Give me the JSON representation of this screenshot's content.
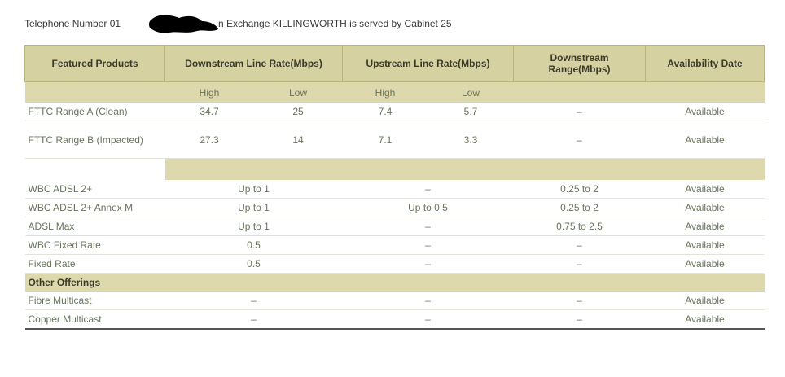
{
  "header": {
    "text_before": "Telephone Number 01",
    "text_after": "n Exchange KILLINGWORTH is served by Cabinet 25"
  },
  "table": {
    "columns": [
      "Featured Products",
      "Downstream Line Rate(Mbps)",
      "Upstream Line Rate(Mbps)",
      "Downstream Range(Mbps)",
      "Availability Date"
    ],
    "subcolumns": [
      "High",
      "Low",
      "High",
      "Low"
    ],
    "rows": [
      [
        "FTTC Range A (Clean)",
        "34.7",
        "25",
        "7.4",
        "5.7",
        "–",
        "Available"
      ],
      [
        "FTTC Range B (Impacted)",
        "27.3",
        "14",
        "7.1",
        "3.3",
        "–",
        "Available"
      ]
    ],
    "rows_b": [
      [
        "WBC ADSL 2+",
        "Up to 1",
        "–",
        "0.25 to 2",
        "Available"
      ],
      [
        "WBC ADSL 2+ Annex M",
        "Up to 1",
        "Up to 0.5",
        "0.25 to 2",
        "Available"
      ],
      [
        "ADSL Max",
        "Up to 1",
        "–",
        "0.75 to 2.5",
        "Available"
      ],
      [
        "WBC Fixed Rate",
        "0.5",
        "–",
        "–",
        "Available"
      ],
      [
        "Fixed Rate",
        "0.5",
        "–",
        "–",
        "Available"
      ]
    ],
    "section": "Other Offerings",
    "rows_c": [
      [
        "Fibre Multicast",
        "–",
        "–",
        "–",
        "Available"
      ],
      [
        "Copper Multicast",
        "–",
        "–",
        "–",
        "Available"
      ]
    ]
  }
}
